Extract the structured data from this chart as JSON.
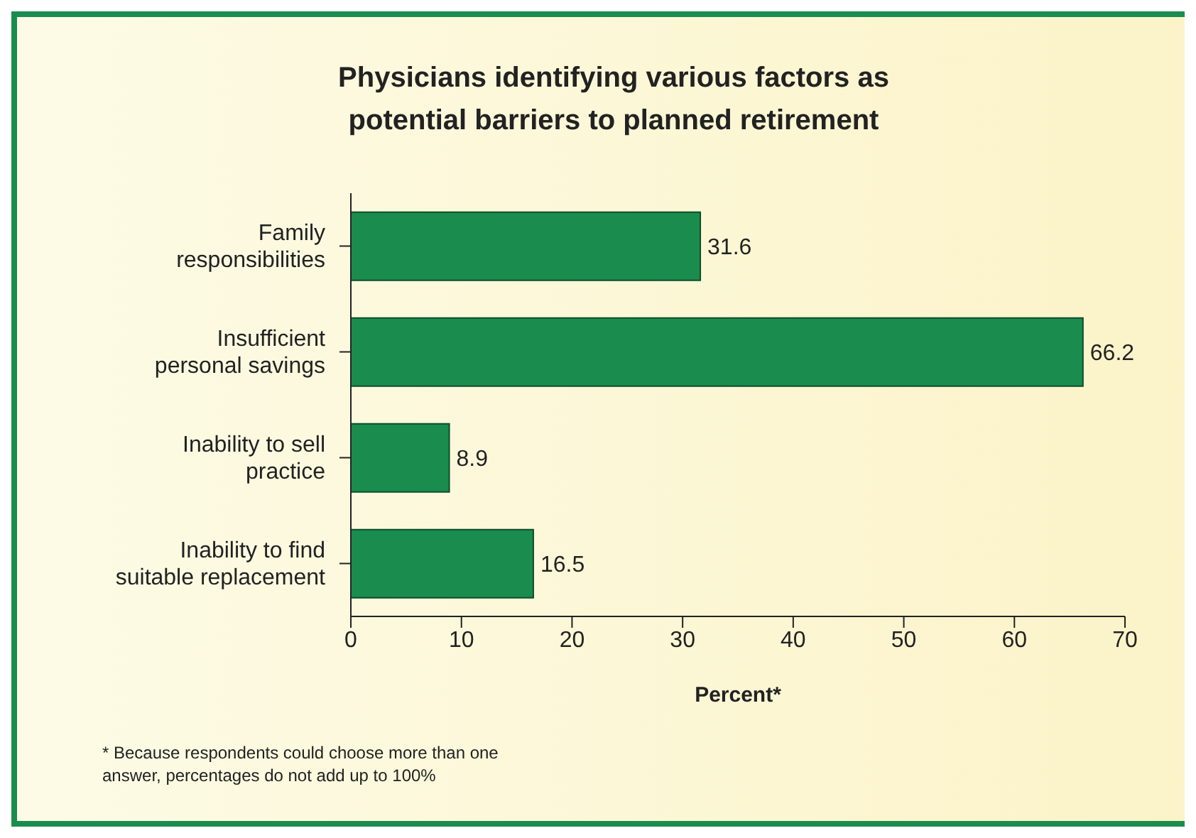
{
  "chart_data": {
    "type": "bar",
    "orientation": "horizontal",
    "title": "Physicians identifying various factors as potential barriers to planned retirement",
    "categories": [
      "Family responsibilities",
      "Insufficient personal savings",
      "Inability to sell practice",
      "Inability to find suitable replacement"
    ],
    "values": [
      31.6,
      66.2,
      8.9,
      16.5
    ],
    "color": "#1a8c4e",
    "xlim": [
      0,
      70
    ],
    "xticks": [
      0,
      10,
      20,
      30,
      40,
      50,
      60,
      70
    ],
    "xlabel": "Percent*",
    "data_labels": true,
    "grid": false,
    "legend": false,
    "annotations": [
      "* Because respondents could choose more than one answer, percentages do not add up to 100%"
    ]
  }
}
